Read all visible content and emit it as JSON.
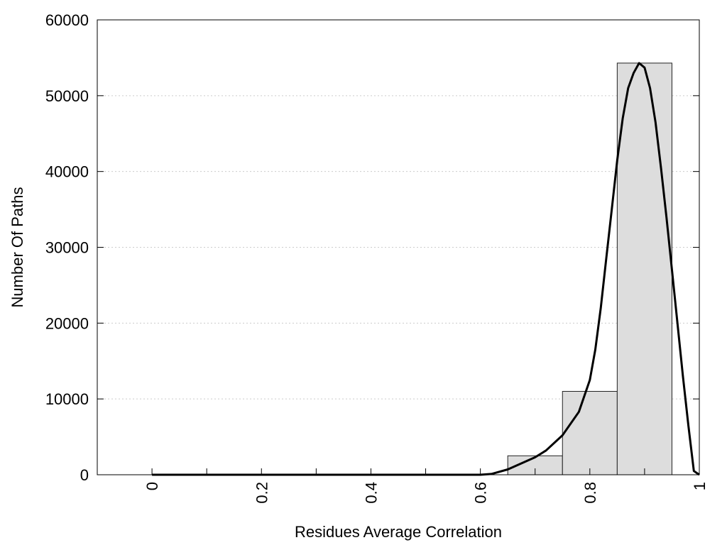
{
  "chart_data": {
    "type": "bar",
    "subtype": "histogram-with-curve",
    "xlabel": "Residues Average Correlation",
    "ylabel": "Number Of Paths",
    "xlim": [
      -0.1,
      1.0
    ],
    "ylim": [
      0,
      60000
    ],
    "x_ticks": [
      0,
      0.2,
      0.4,
      0.6,
      0.8,
      1
    ],
    "x_tick_labels": [
      "0",
      "0.2",
      "0.4",
      "0.6",
      "0.8",
      "1"
    ],
    "x_minor_ticks": [
      0.1,
      0.3,
      0.5,
      0.7,
      0.9
    ],
    "y_ticks": [
      0,
      10000,
      20000,
      30000,
      40000,
      50000,
      60000
    ],
    "y_tick_labels": [
      "0",
      "10000",
      "20000",
      "30000",
      "40000",
      "50000",
      "60000"
    ],
    "grid": "horizontal-dotted",
    "bars": [
      {
        "x0": 0.65,
        "x1": 0.75,
        "value": 2500
      },
      {
        "x0": 0.75,
        "x1": 0.85,
        "value": 11000
      },
      {
        "x0": 0.85,
        "x1": 0.95,
        "value": 54300
      }
    ],
    "curve": {
      "x": [
        0,
        0.1,
        0.2,
        0.3,
        0.4,
        0.5,
        0.6,
        0.62,
        0.65,
        0.7,
        0.72,
        0.75,
        0.78,
        0.8,
        0.81,
        0.82,
        0.83,
        0.84,
        0.85,
        0.86,
        0.87,
        0.88,
        0.89,
        0.9,
        0.91,
        0.92,
        0.93,
        0.94,
        0.95,
        0.96,
        0.97,
        0.98,
        0.99,
        1.0
      ],
      "y": [
        0,
        0,
        0,
        0,
        0,
        0,
        0,
        100,
        700,
        2300,
        3200,
        5200,
        8300,
        12500,
        16500,
        22000,
        28500,
        35000,
        41500,
        47000,
        51000,
        53000,
        54300,
        53700,
        51000,
        46500,
        40500,
        34000,
        27000,
        20000,
        13000,
        6500,
        500,
        0
      ]
    },
    "colors": {
      "bar_fill": "#dddddd",
      "bar_stroke": "#222222",
      "curve": "#000000",
      "grid": "#cccccc"
    }
  }
}
